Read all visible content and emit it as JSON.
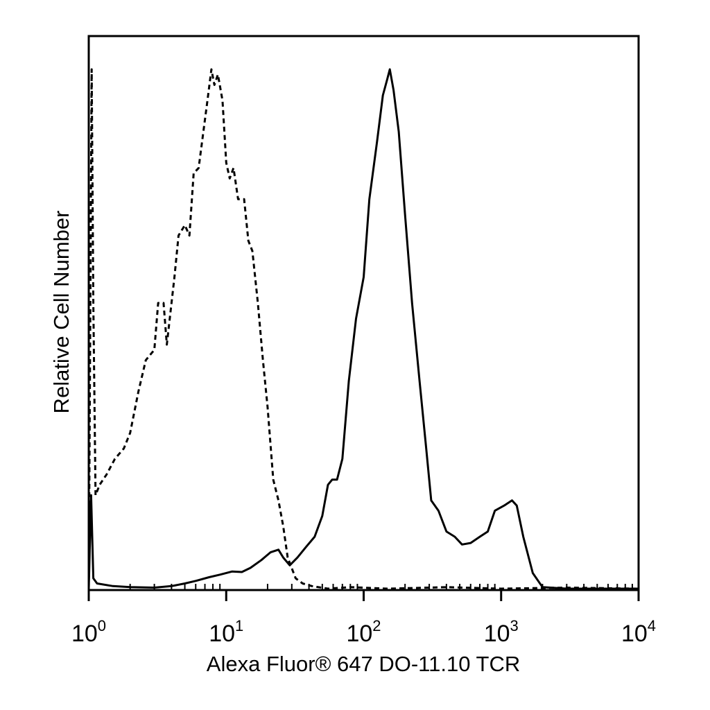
{
  "chart_data": {
    "type": "histogram",
    "title": "",
    "xlabel": "Alexa Fluor® 647 DO-11.10 TCR",
    "ylabel": "Relative Cell Number",
    "x_scale": "log",
    "xlim": [
      1,
      10000
    ],
    "ylim": [
      0,
      1
    ],
    "grid": false,
    "legend": "none",
    "x_ticks": [
      {
        "base": "10",
        "exp": "0",
        "value": 1
      },
      {
        "base": "10",
        "exp": "1",
        "value": 10
      },
      {
        "base": "10",
        "exp": "2",
        "value": 100
      },
      {
        "base": "10",
        "exp": "3",
        "value": 1000
      },
      {
        "base": "10",
        "exp": "4",
        "value": 10000
      }
    ],
    "series": [
      {
        "style": "dashed",
        "color": "#000000",
        "points": [
          [
            1.0,
            0.0
          ],
          [
            1.05,
            1.0
          ],
          [
            1.08,
            0.55
          ],
          [
            1.12,
            0.18
          ],
          [
            1.2,
            0.2
          ],
          [
            1.35,
            0.22
          ],
          [
            1.55,
            0.25
          ],
          [
            1.8,
            0.27
          ],
          [
            2.0,
            0.3
          ],
          [
            2.3,
            0.38
          ],
          [
            2.6,
            0.44
          ],
          [
            3.0,
            0.46
          ],
          [
            3.2,
            0.55
          ],
          [
            3.5,
            0.55
          ],
          [
            3.7,
            0.47
          ],
          [
            4.2,
            0.6
          ],
          [
            4.5,
            0.68
          ],
          [
            5.0,
            0.7
          ],
          [
            5.4,
            0.68
          ],
          [
            5.8,
            0.8
          ],
          [
            6.3,
            0.81
          ],
          [
            6.9,
            0.89
          ],
          [
            7.3,
            0.94
          ],
          [
            7.8,
            1.0
          ],
          [
            8.2,
            0.97
          ],
          [
            8.7,
            0.99
          ],
          [
            9.4,
            0.94
          ],
          [
            10.0,
            0.82
          ],
          [
            10.6,
            0.79
          ],
          [
            11.3,
            0.81
          ],
          [
            12.2,
            0.75
          ],
          [
            13.5,
            0.75
          ],
          [
            14.5,
            0.67
          ],
          [
            15.5,
            0.65
          ],
          [
            17.0,
            0.55
          ],
          [
            18.5,
            0.44
          ],
          [
            20.0,
            0.35
          ],
          [
            22.0,
            0.21
          ],
          [
            24.0,
            0.17
          ],
          [
            26.0,
            0.12
          ],
          [
            28.0,
            0.06
          ],
          [
            32.0,
            0.02
          ],
          [
            36.0,
            0.01
          ],
          [
            42.0,
            0.005
          ],
          [
            55.0,
            0.0
          ],
          [
            80.0,
            0.003
          ],
          [
            150.0,
            0.0
          ],
          [
            400.0,
            0.003
          ],
          [
            1000.0,
            0.0
          ],
          [
            3000.0,
            0.002
          ],
          [
            10000.0,
            0.0
          ]
        ]
      },
      {
        "style": "solid",
        "color": "#000000",
        "points": [
          [
            1.0,
            0.0
          ],
          [
            1.04,
            0.18
          ],
          [
            1.08,
            0.02
          ],
          [
            1.15,
            0.01
          ],
          [
            1.5,
            0.005
          ],
          [
            2.0,
            0.003
          ],
          [
            3.0,
            0.002
          ],
          [
            4.0,
            0.005
          ],
          [
            5.0,
            0.01
          ],
          [
            6.0,
            0.015
          ],
          [
            7.5,
            0.022
          ],
          [
            9.0,
            0.027
          ],
          [
            11.0,
            0.033
          ],
          [
            13.0,
            0.032
          ],
          [
            15.0,
            0.04
          ],
          [
            18.0,
            0.055
          ],
          [
            21.0,
            0.07
          ],
          [
            24.0,
            0.075
          ],
          [
            26.0,
            0.06
          ],
          [
            29.0,
            0.045
          ],
          [
            33.0,
            0.06
          ],
          [
            38.0,
            0.08
          ],
          [
            44.0,
            0.1
          ],
          [
            50.0,
            0.14
          ],
          [
            55.0,
            0.2
          ],
          [
            59.0,
            0.21
          ],
          [
            64.0,
            0.21
          ],
          [
            70.0,
            0.25
          ],
          [
            78.0,
            0.4
          ],
          [
            88.0,
            0.52
          ],
          [
            100.0,
            0.6
          ],
          [
            110.0,
            0.75
          ],
          [
            125.0,
            0.86
          ],
          [
            138.0,
            0.95
          ],
          [
            148.0,
            0.98
          ],
          [
            155.0,
            1.0
          ],
          [
            165.0,
            0.96
          ],
          [
            180.0,
            0.88
          ],
          [
            200.0,
            0.72
          ],
          [
            225.0,
            0.55
          ],
          [
            255.0,
            0.4
          ],
          [
            285.0,
            0.27
          ],
          [
            310.0,
            0.17
          ],
          [
            350.0,
            0.15
          ],
          [
            400.0,
            0.11
          ],
          [
            460.0,
            0.1
          ],
          [
            520.0,
            0.085
          ],
          [
            600.0,
            0.088
          ],
          [
            700.0,
            0.1
          ],
          [
            800.0,
            0.11
          ],
          [
            900.0,
            0.15
          ],
          [
            1050.0,
            0.16
          ],
          [
            1200.0,
            0.17
          ],
          [
            1300.0,
            0.16
          ],
          [
            1450.0,
            0.1
          ],
          [
            1700.0,
            0.03
          ],
          [
            2000.0,
            0.003
          ],
          [
            3000.0,
            0.0
          ],
          [
            10000.0,
            0.0
          ]
        ]
      }
    ]
  }
}
